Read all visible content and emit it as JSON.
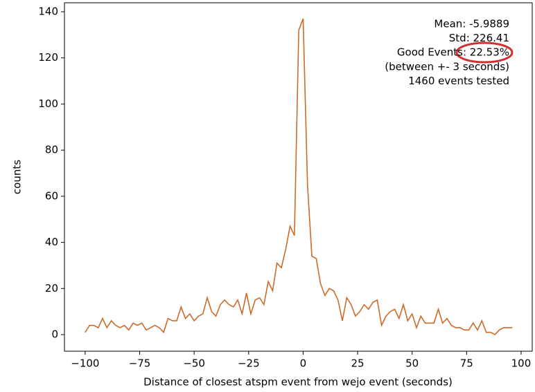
{
  "chart_data": {
    "type": "line",
    "x_label": "Distance of closest atspm event from wejo event (seconds)",
    "y_label": "counts",
    "annotation_lines": [
      "Mean: -5.9889",
      "Std: 226.41",
      "Good Events: 22.53%",
      "(between +- 3 seconds)",
      "1460 events tested"
    ],
    "x": [
      -100,
      -98,
      -96,
      -94,
      -92,
      -90,
      -88,
      -86,
      -84,
      -82,
      -80,
      -78,
      -76,
      -74,
      -72,
      -70,
      -68,
      -66,
      -64,
      -62,
      -60,
      -58,
      -56,
      -54,
      -52,
      -50,
      -48,
      -46,
      -44,
      -42,
      -40,
      -38,
      -36,
      -34,
      -32,
      -30,
      -28,
      -26,
      -24,
      -22,
      -20,
      -18,
      -16,
      -14,
      -12,
      -10,
      -8,
      -6,
      -4,
      -2,
      0,
      2,
      4,
      6,
      8,
      10,
      12,
      14,
      16,
      18,
      20,
      22,
      24,
      26,
      28,
      30,
      32,
      34,
      36,
      38,
      40,
      42,
      44,
      46,
      48,
      50,
      52,
      54,
      56,
      58,
      60,
      62,
      64,
      66,
      68,
      70,
      72,
      74,
      76,
      78,
      80,
      82,
      84,
      86,
      88,
      90,
      92,
      94,
      96
    ],
    "series": [
      {
        "name": "counts",
        "color": "#cc6a2a",
        "values": [
          1,
          4,
          4,
          3,
          7,
          3,
          6,
          4,
          3,
          4,
          2,
          5,
          4,
          5,
          2,
          3,
          4,
          3,
          1,
          7,
          6,
          6,
          12,
          7,
          9,
          6,
          8,
          9,
          16,
          10,
          8,
          13,
          15,
          13,
          12,
          15,
          9,
          18,
          9,
          15,
          16,
          13,
          23,
          19,
          31,
          29,
          37,
          47,
          43,
          132,
          137,
          65,
          34,
          33,
          22,
          17,
          20,
          19,
          15,
          6,
          16,
          13,
          8,
          10,
          13,
          11,
          14,
          15,
          4,
          8,
          10,
          11,
          7,
          13,
          6,
          9,
          3,
          8,
          5,
          5,
          5,
          11,
          5,
          7,
          4,
          3,
          3,
          2,
          2,
          5,
          2,
          6,
          1,
          1,
          0,
          2,
          3,
          3,
          3
        ]
      }
    ],
    "xlim": [
      -109.5,
      105.1
    ],
    "ylim": [
      -7.2,
      143.9
    ],
    "xticks": [
      {
        "value": -100,
        "label": "−100"
      },
      {
        "value": -75,
        "label": "−75"
      },
      {
        "value": -50,
        "label": "−50"
      },
      {
        "value": -25,
        "label": "−25"
      },
      0,
      25,
      50,
      75,
      100
    ],
    "yticks": [
      0,
      20,
      40,
      60,
      80,
      100,
      120,
      140
    ]
  }
}
